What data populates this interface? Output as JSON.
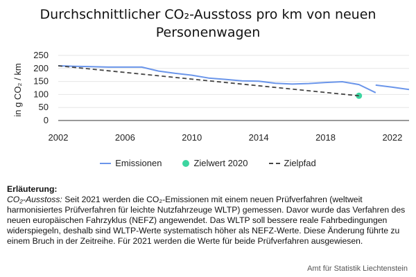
{
  "chart_data": {
    "type": "line",
    "title": "Durchschnittlicher CO₂-Ausstoss pro km von neuen Personenwagen",
    "ylabel": "in g CO₂ / km",
    "xlabel": "",
    "xlim": [
      2002,
      2023
    ],
    "ylim": [
      0,
      250
    ],
    "x_ticks": [
      "2002",
      "2006",
      "2010",
      "2014",
      "2018",
      "2022"
    ],
    "y_ticks": [
      "0",
      "50",
      "100",
      "150",
      "200",
      "250"
    ],
    "grid": "horizontal",
    "legend_position": "bottom",
    "series": [
      {
        "name": "Emissionen",
        "style": "solid",
        "color": "#6a95ea",
        "segments": [
          {
            "x": [
              2002,
              2003,
              2004,
              2005,
              2006,
              2007,
              2008,
              2009,
              2010,
              2011,
              2012,
              2013,
              2014,
              2015,
              2016,
              2017,
              2018,
              2019,
              2020,
              2021
            ],
            "y": [
              210,
              208,
              207,
              205,
              205,
              205,
              190,
              181,
              174,
              163,
              158,
              152,
              151,
              143,
              140,
              142,
              146,
              149,
              138,
              107
            ]
          },
          {
            "x": [
              2021,
              2022,
              2023
            ],
            "y": [
              136,
              128,
              119
            ]
          }
        ]
      },
      {
        "name": "Zielwert 2020",
        "style": "marker",
        "color": "#3dd5a0",
        "x": [
          2020
        ],
        "y": [
          95
        ]
      },
      {
        "name": "Zielpfad",
        "style": "dashed",
        "color": "#444444",
        "x": [
          2002,
          2020
        ],
        "y": [
          210,
          95
        ]
      }
    ]
  },
  "legend": {
    "emissionen": "Emissionen",
    "zielwert": "Zielwert 2020",
    "zielpfad": "Zielpfad"
  },
  "note": {
    "heading": "Erläuterung:",
    "term": "CO₂-Ausstoss:",
    "text": " Seit 2021 werden die CO₂-Emissionen mit einem neuen Prüfverfahren (weltweit harmonisiertes Prüfverfahren für leichte Nutzfahrzeuge WLTP) gemessen. Davor wurde das Verfahren des neuen europäischen Fahrzyklus (NEFZ) angewendet. Das WLTP soll bessere reale Fahrbedingungen widerspiegeln, deshalb sind WLTP-Werte systematisch höher als NEFZ-Werte. Diese Änderung führte zu einem Bruch in der Zeitreihe. Für 2021 werden die Werte für beide Prüfverfahren ausgewiesen."
  },
  "source": "Amt für Statistik Liechtenstein"
}
